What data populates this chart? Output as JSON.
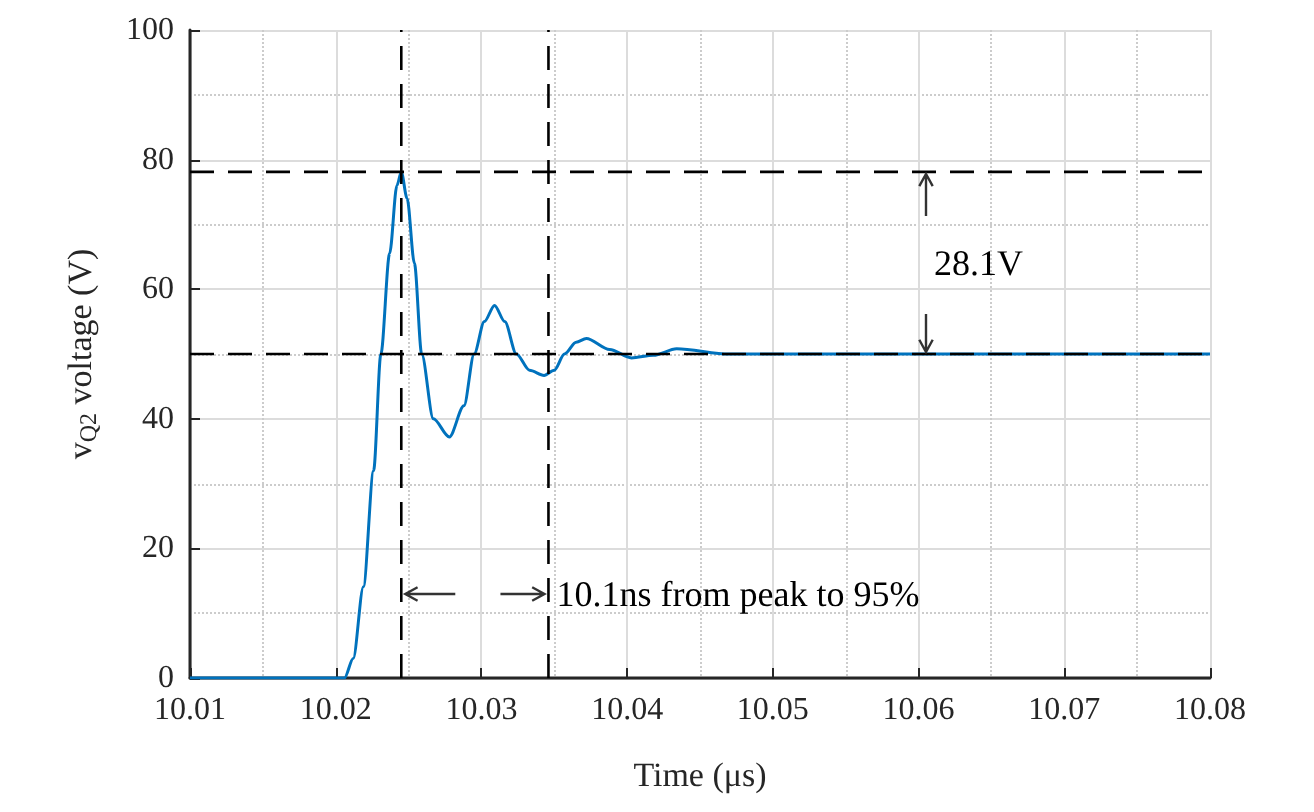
{
  "chart_data": {
    "type": "line",
    "xlabel": "Time (μs)",
    "ylabel": "v$_{Q2}$ voltage (V)",
    "series": [
      {
        "color": "#0072bd",
        "x": [
          10.01,
          10.0206,
          10.0212,
          10.0219,
          10.0226,
          10.0231,
          10.0237,
          10.0242,
          10.0245,
          10.0249,
          10.0254,
          10.0259,
          10.0267,
          10.0278,
          10.0288,
          10.0295,
          10.0302,
          10.0309,
          10.0316,
          10.0324,
          10.0333,
          10.0343,
          10.035,
          10.0357,
          10.0365,
          10.0372,
          10.0388,
          10.0403,
          10.0418,
          10.0434,
          10.047,
          10.05,
          10.08
        ],
        "values": [
          0,
          0,
          3,
          14.1,
          32,
          50,
          65.5,
          76,
          78.1,
          74,
          64,
          50,
          40,
          37.2,
          42,
          50,
          55,
          57.5,
          55,
          50,
          47.5,
          46.7,
          47.5,
          50,
          51.8,
          52.4,
          50.7,
          49.4,
          49.8,
          50.8,
          50,
          50,
          50
        ]
      }
    ],
    "xlim": [
      10.01,
      10.08
    ],
    "xticks": [
      10.01,
      10.02,
      10.03,
      10.04,
      10.05,
      10.06,
      10.07,
      10.08
    ],
    "ylim": [
      0,
      100
    ],
    "yticks": [
      0,
      20,
      40,
      60,
      80,
      100
    ],
    "grid": true,
    "line_style": "solid",
    "marker": "none",
    "ref_lines": [
      {
        "axis": "y",
        "value": 78.1,
        "color": "#000000",
        "line_style": "dashed"
      },
      {
        "axis": "y",
        "value": 50,
        "color": "#000000",
        "line_style": "dashed"
      },
      {
        "axis": "x",
        "value": 10.0245,
        "color": "#000000",
        "line_style": "dashed"
      },
      {
        "axis": "x",
        "value": 10.0346,
        "color": "#000000",
        "line_style": "dashed"
      }
    ],
    "annotations": [
      "28.1V",
      "10.1ns from peak to 95%"
    ]
  }
}
